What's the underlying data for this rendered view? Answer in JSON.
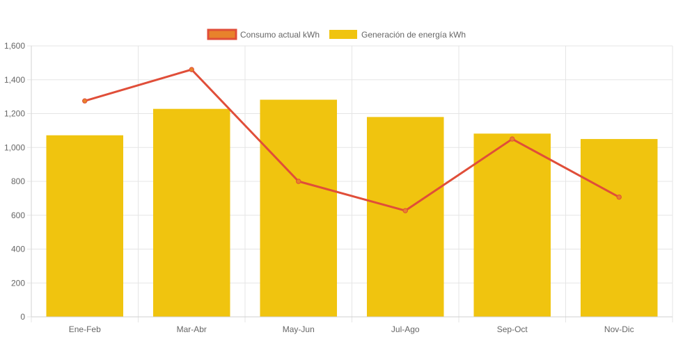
{
  "chart_data": {
    "type": "bar",
    "categories": [
      "Ene-Feb",
      "Mar-Abr",
      "May-Jun",
      "Jul-Ago",
      "Sep-Oct",
      "Nov-Dic"
    ],
    "series": [
      {
        "name": "Consumo actual kWh",
        "type": "line",
        "color": "#e04e39",
        "fill_color": "#e8822b",
        "values": [
          1275,
          1460,
          800,
          627,
          1050,
          707
        ]
      },
      {
        "name": "Generación de energía kWh",
        "type": "bar",
        "color": "#f0c40f",
        "values": [
          1072,
          1228,
          1282,
          1180,
          1082,
          1050
        ]
      }
    ],
    "yticks": [
      "0",
      "200",
      "400",
      "600",
      "800",
      "1,000",
      "1,200",
      "1,400",
      "1,600"
    ],
    "ylim": [
      0,
      1600
    ],
    "grid": true,
    "legend": "top-center",
    "title": "",
    "xlabel": "",
    "ylabel": ""
  }
}
